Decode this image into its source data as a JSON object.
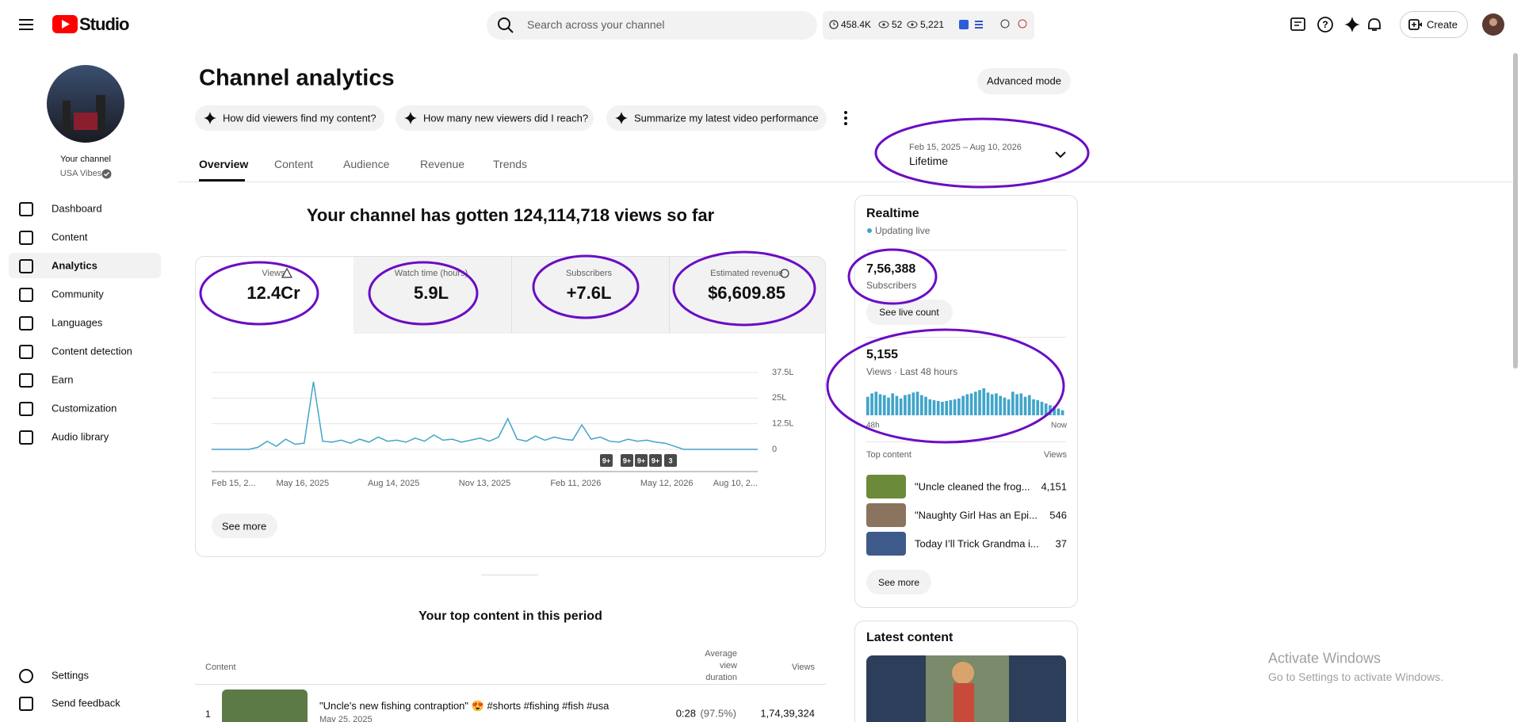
{
  "header": {
    "logo": "Studio",
    "search_placeholder": "Search across your channel",
    "stats": [
      "458.4K",
      "52",
      "5,221"
    ],
    "create": "Create"
  },
  "sidebar": {
    "channel_label": "Your channel",
    "channel_name": "USA Vibes",
    "nav": [
      "Dashboard",
      "Content",
      "Analytics",
      "Community",
      "Languages",
      "Content detection",
      "Earn",
      "Customization",
      "Audio library"
    ],
    "footer": [
      "Settings",
      "Send feedback"
    ]
  },
  "main": {
    "title": "Channel analytics",
    "advanced_mode": "Advanced mode",
    "prompts": [
      "How did viewers find my content?",
      "How many new viewers did I reach?",
      "Summarize my latest video performance"
    ],
    "tabs": [
      "Overview",
      "Content",
      "Audience",
      "Revenue",
      "Trends"
    ],
    "date_range": "Feb 15, 2025 – Aug 10, 2026",
    "period": "Lifetime",
    "headline": "Your channel has gotten 124,114,718 views so far",
    "metrics": [
      {
        "label": "Views",
        "value": "12.4Cr"
      },
      {
        "label": "Watch time (hours)",
        "value": "5.9L"
      },
      {
        "label": "Subscribers",
        "value": "+7.6L"
      },
      {
        "label": "Estimated revenue",
        "value": "$6,609.85"
      }
    ],
    "see_more": "See more",
    "top_content_title": "Your top content in this period",
    "table": {
      "headers": [
        "Content",
        "Average view duration",
        "Views"
      ],
      "rows": [
        [
          "1",
          "\"Uncle's new fishing contraption\" 😍 #shorts #fishing #fish #usa",
          "May 25, 2025",
          "0:28",
          "(97.5%)",
          "1,74,39,324"
        ]
      ]
    }
  },
  "realtime": {
    "title": "Realtime",
    "status": "Updating live",
    "subscribers": "7,56,388",
    "subscribers_label": "Subscribers",
    "live_count": "See live count",
    "views": "5,155",
    "views_label": "Views · Last 48 hours",
    "start_label": "48h",
    "end_label": "Now",
    "top_content_label": "Top content",
    "views_header": "Views",
    "top_content": [
      {
        "title": "\"Uncle cleaned the frog...",
        "views": "4,151"
      },
      {
        "title": "\"Naughty Girl Has an Epi...",
        "views": "546"
      },
      {
        "title": "Today I’ll Trick Grandma i...",
        "views": "37"
      }
    ],
    "see_more": "See more"
  },
  "latest": {
    "title": "Latest content"
  },
  "watermark": [
    "Activate Windows",
    "Go to Settings to activate Windows."
  ],
  "chart_data": [
    {
      "type": "line",
      "color": "#41a4c9",
      "x_tick_labels": [
        "Feb 15, 2...",
        "May 16, 2025",
        "Aug 14, 2025",
        "Nov 13, 2025",
        "Feb 11, 2026",
        "May 12, 2026",
        "Aug 10, 2..."
      ],
      "values": [
        0,
        0,
        0,
        0,
        0,
        100000,
        400000,
        150000,
        500000,
        250000,
        300000,
        3300000,
        400000,
        350000,
        450000,
        300000,
        500000,
        350000,
        600000,
        400000,
        450000,
        350000,
        550000,
        400000,
        700000,
        450000,
        500000,
        350000,
        450000,
        550000,
        400000,
        600000,
        1500000,
        500000,
        400000,
        650000,
        450000,
        600000,
        500000,
        450000,
        1200000,
        500000,
        600000,
        400000,
        350000,
        500000,
        400000,
        450000,
        350000,
        300000,
        150000,
        0,
        0,
        0,
        0,
        0,
        0,
        0,
        0,
        0
      ],
      "ylim": [
        0,
        3750000
      ],
      "yticks": [
        {
          "value": 0,
          "label": "0"
        },
        {
          "value": 1250000,
          "label": "12.5L"
        },
        {
          "value": 2500000,
          "label": "25L"
        },
        {
          "value": 3750000,
          "label": "37.5L"
        }
      ],
      "grid": true,
      "annotations": [
        "9+",
        "9+",
        "9+",
        "9+",
        "3"
      ]
    },
    {
      "type": "bar",
      "color": "#41a4c9",
      "values": [
        110,
        130,
        140,
        125,
        120,
        105,
        130,
        115,
        100,
        120,
        125,
        135,
        140,
        120,
        110,
        95,
        90,
        85,
        80,
        85,
        90,
        95,
        100,
        115,
        125,
        130,
        140,
        150,
        160,
        135,
        125,
        130,
        115,
        105,
        95,
        140,
        125,
        130,
        110,
        120,
        95,
        90,
        80,
        70,
        60,
        55,
        40,
        30
      ]
    }
  ]
}
